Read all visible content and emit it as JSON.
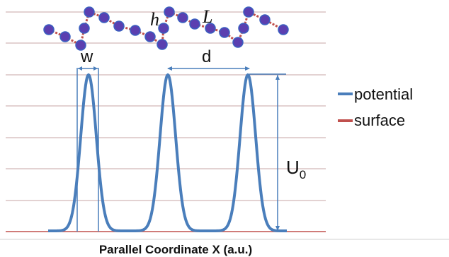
{
  "diagram": {
    "labels": {
      "h": "h",
      "L": "L",
      "w": "w",
      "d": "d",
      "u0_main": "U",
      "u0_sub": "0"
    },
    "legend": [
      {
        "label": "potential",
        "color": "#4a7ebb"
      },
      {
        "label": "surface",
        "color": "#c0504d"
      }
    ],
    "x_axis_label": "Parallel Coordinate X (a.u.)",
    "colors": {
      "potential": "#4a7ebb",
      "surface": "#c0504d",
      "chain_bond": "#c0504d",
      "chain_bead_fill": "#5b3fb0",
      "chain_bead_stroke": "#3a60c0",
      "gridline": "#c7a4a4",
      "dimension": "#4a7ebb"
    }
  }
}
